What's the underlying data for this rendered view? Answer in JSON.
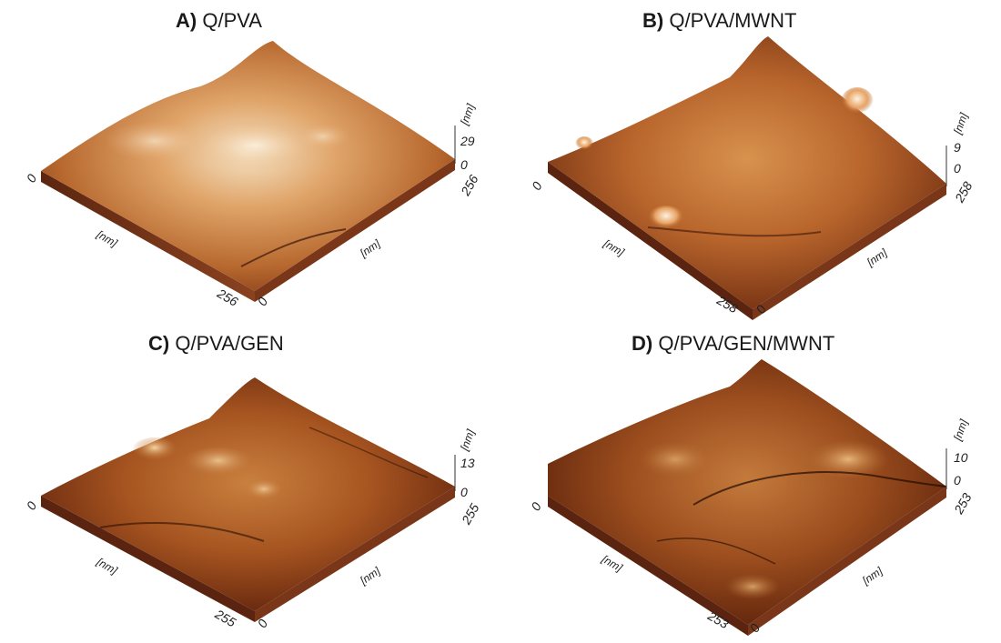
{
  "panels": [
    {
      "letter": "A)",
      "label": "Q/PVA",
      "zmax": "29",
      "zmin": "0",
      "zunit": "[nm]",
      "xmax": "256",
      "ymax": "256",
      "xunit": "[nm]",
      "yunit": "[nm]",
      "origin": "0",
      "origin2": "0"
    },
    {
      "letter": "B)",
      "label": "Q/PVA/MWNT",
      "zmax": "9",
      "zmin": "0",
      "zunit": "[nm]",
      "xmax": "258",
      "ymax": "258",
      "xunit": "[nm]",
      "yunit": "[nm]",
      "origin": "0",
      "origin2": "0"
    },
    {
      "letter": "C)",
      "label": "Q/PVA/GEN",
      "zmax": "13",
      "zmin": "0",
      "zunit": "[nm]",
      "xmax": "255",
      "ymax": "255",
      "xunit": "[nm]",
      "yunit": "[nm]",
      "origin": "0",
      "origin2": "0"
    },
    {
      "letter": "D)",
      "label": "Q/PVA/GEN/MWNT",
      "zmax": "10",
      "zmin": "0",
      "zunit": "[nm]",
      "xmax": "253",
      "ymax": "253",
      "xunit": "[nm]",
      "yunit": "[nm]",
      "origin": "0",
      "origin2": "0"
    }
  ],
  "colors": {
    "surface_light": "#f6e6c8",
    "surface_mid": "#c87a3a",
    "surface_dark": "#6b2a10",
    "side_wall": "#7a3a1c"
  }
}
